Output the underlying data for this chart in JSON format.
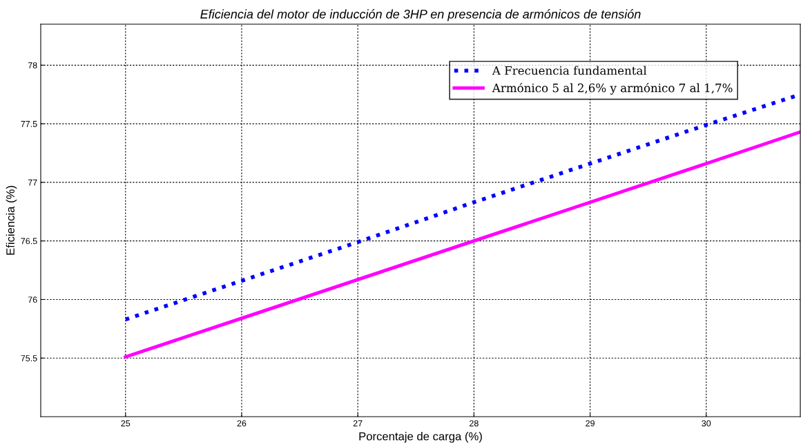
{
  "chart_data": {
    "type": "line",
    "title": "Eficiencia del motor de inducción de 3HP en presencia de armónicos de tensión",
    "xlabel": "Porcentaje de carga (%)",
    "ylabel": "Eficiencia (%)",
    "x": [
      25,
      26,
      27,
      28,
      29,
      30,
      30.81
    ],
    "series": [
      {
        "name": "A Frecuencia fundamental",
        "color": "#0000ff",
        "line_style": "dotted",
        "values": [
          75.83,
          76.16,
          76.49,
          76.83,
          77.16,
          77.49,
          77.75
        ]
      },
      {
        "name": "Armónico 5 al 2,6% y armónico 7 al 1,7%",
        "color": "#ff00ff",
        "line_style": "solid",
        "values": [
          75.51,
          75.84,
          76.17,
          76.5,
          76.83,
          77.16,
          77.43
        ]
      }
    ],
    "xlim": [
      24.27,
      30.81
    ],
    "ylim": [
      75.0,
      78.35
    ],
    "xticks": [
      25,
      26,
      27,
      28,
      29,
      30
    ],
    "yticks": [
      75.5,
      76,
      76.5,
      77,
      77.5,
      78
    ],
    "grid": true,
    "legend": "top right",
    "marker": "none"
  }
}
